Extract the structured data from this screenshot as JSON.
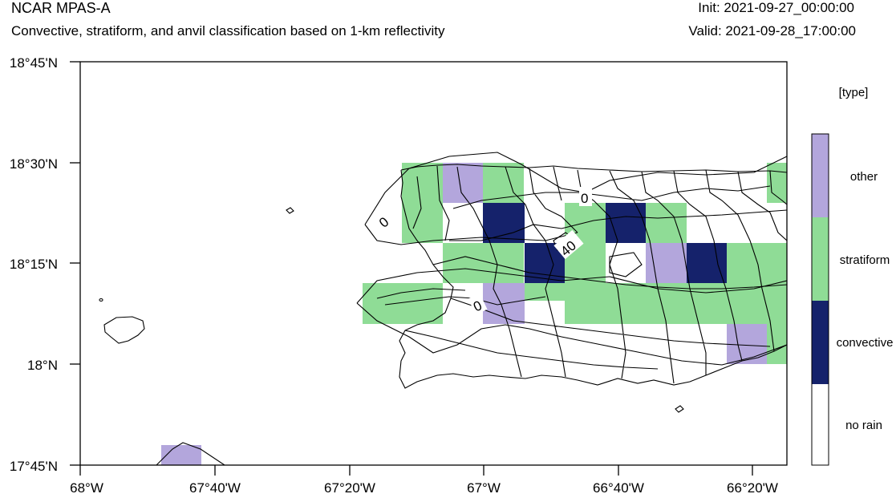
{
  "header": {
    "model": "NCAR MPAS-A",
    "description": "Convective, stratiform, and anvil classification based on 1-km reflectivity",
    "init": "Init: 2021-09-27_00:00:00",
    "valid": "Valid: 2021-09-28_17:00:00"
  },
  "axes": {
    "lat_ticks": [
      "18°45'N",
      "18°30'N",
      "18°15'N",
      "18°N",
      "17°45'N"
    ],
    "lon_ticks": [
      "68°W",
      "67°40'W",
      "67°20'W",
      "67°W",
      "66°40'W",
      "66°20'W"
    ]
  },
  "legend": {
    "title": "[type]",
    "items": [
      {
        "label": "other",
        "color": "#b3a6dc"
      },
      {
        "label": "stratiform",
        "color": "#8fdc96"
      },
      {
        "label": "convective",
        "color": "#15226b"
      },
      {
        "label": "no rain",
        "color": "#ffffff"
      }
    ]
  },
  "contour_labels": [
    "0",
    "0",
    "0",
    "40"
  ]
}
